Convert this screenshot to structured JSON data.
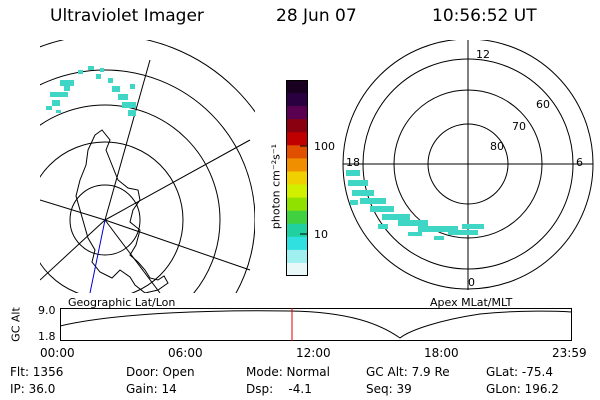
{
  "header": {
    "title": "Ultraviolet Imager",
    "date": "28 Jun 07",
    "time": "10:56:52 UT"
  },
  "left_panel": {
    "label": "Geographic Lat/Lon",
    "aurora_color": "#3fd6c6",
    "track_color": "#0000cc"
  },
  "colorbar": {
    "unit_label": "photon cm⁻²s⁻¹",
    "tick_100": "100",
    "tick_10": "10",
    "colors": [
      "#1a0020",
      "#2a0040",
      "#5a0050",
      "#8a0010",
      "#c00000",
      "#e05000",
      "#f09000",
      "#f0d000",
      "#d0f000",
      "#90e000",
      "#40d040",
      "#20d0a0",
      "#30e0e0",
      "#a0f0f0",
      "#e8f8f8"
    ]
  },
  "right_panel": {
    "label": "Apex MLat/MLT",
    "mlt_12": "12",
    "mlt_18": "18",
    "mlt_6": "6",
    "mlt_0": "0",
    "lat_60": "60",
    "lat_70": "70",
    "lat_80": "80"
  },
  "altitude_strip": {
    "axis_label": "GC Alt",
    "tick_top": "9.0",
    "tick_bottom": "1.8",
    "time_ticks": [
      "00:00",
      "06:00",
      "12:00",
      "18:00",
      "23:59"
    ],
    "current_time_marker_color": "#e00000"
  },
  "footer": {
    "flt": "Flt: 1356",
    "ip": "IP: 36.0",
    "door": "Door: Open",
    "gain": "Gain: 14",
    "mode": "Mode: Normal",
    "dsp": "Dsp:    -4.1",
    "gc_alt": "GC Alt: 7.9 Re",
    "seq": "Seq: 39",
    "glat": "GLat: -75.4",
    "glon": "GLon: 196.2"
  }
}
